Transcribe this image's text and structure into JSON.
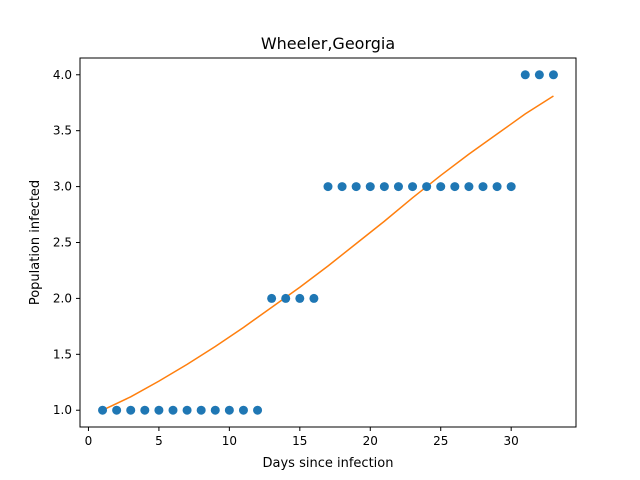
{
  "chart_data": {
    "type": "scatter",
    "title": "Wheeler,Georgia",
    "xlabel": "Days since infection",
    "ylabel": "Population infected",
    "xlim": [
      -0.6,
      34.6
    ],
    "ylim": [
      0.85,
      4.15
    ],
    "x_ticks": [
      0,
      5,
      10,
      15,
      20,
      25,
      30
    ],
    "x_tick_labels": [
      "0",
      "5",
      "10",
      "15",
      "20",
      "25",
      "30"
    ],
    "y_ticks": [
      1.0,
      1.5,
      2.0,
      2.5,
      3.0,
      3.5,
      4.0
    ],
    "y_tick_labels": [
      "1.0",
      "1.5",
      "2.0",
      "2.5",
      "3.0",
      "3.5",
      "4.0"
    ],
    "grid": false,
    "series": [
      {
        "kind": "scatter",
        "color": "#1f77b4",
        "x": [
          1,
          2,
          3,
          4,
          5,
          6,
          7,
          8,
          9,
          10,
          11,
          12,
          13,
          14,
          15,
          16,
          17,
          18,
          19,
          20,
          21,
          22,
          23,
          24,
          25,
          26,
          27,
          28,
          29,
          30,
          31,
          32,
          33
        ],
        "y": [
          1,
          1,
          1,
          1,
          1,
          1,
          1,
          1,
          1,
          1,
          1,
          1,
          2,
          2,
          2,
          2,
          3,
          3,
          3,
          3,
          3,
          3,
          3,
          3,
          3,
          3,
          3,
          3,
          3,
          3,
          4,
          4,
          4
        ]
      },
      {
        "kind": "line",
        "color": "#ff7f0e",
        "x": [
          1,
          3,
          5,
          7,
          9,
          11,
          13,
          15,
          17,
          19,
          21,
          23,
          25,
          27,
          29,
          31,
          33
        ],
        "y": [
          1.0,
          1.12,
          1.26,
          1.41,
          1.57,
          1.74,
          1.92,
          2.1,
          2.29,
          2.49,
          2.69,
          2.9,
          3.1,
          3.29,
          3.47,
          3.65,
          3.81
        ]
      }
    ]
  }
}
